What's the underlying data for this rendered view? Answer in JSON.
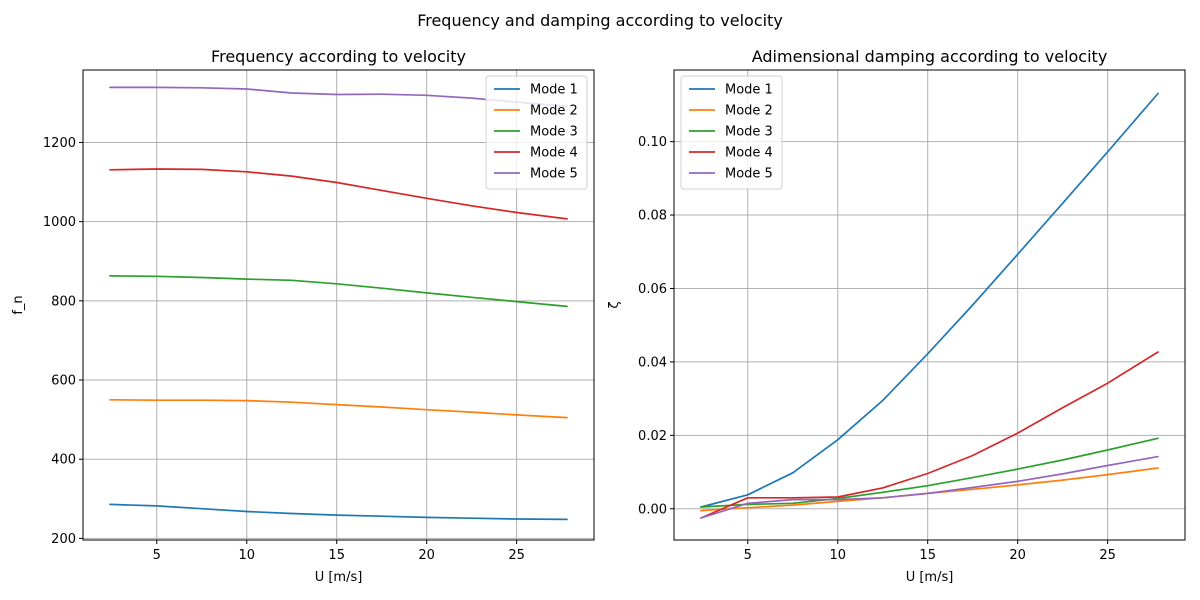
{
  "figure": {
    "suptitle": "Frequency and damping according to velocity"
  },
  "chart_data": [
    {
      "type": "line",
      "title": "Frequency according to velocity",
      "xlabel": "U [m/s]",
      "ylabel": "f_n",
      "xlim": [
        0.9,
        29.3
      ],
      "ylim": [
        196,
        1383
      ],
      "xticks": [
        5,
        10,
        15,
        20,
        25
      ],
      "yticks": [
        200,
        400,
        600,
        800,
        1000,
        1200
      ],
      "ytick_labels": [
        "200",
        "400",
        "600",
        "800",
        "1000",
        "1200"
      ],
      "grid": true,
      "legend_position": "upper right",
      "x": [
        2.4,
        5.0,
        7.5,
        10.0,
        12.5,
        15.0,
        17.5,
        20.0,
        22.5,
        25.0,
        27.8
      ],
      "series": [
        {
          "name": "Mode 1",
          "color": "#1f77b4",
          "values": [
            286,
            282,
            275,
            268,
            263,
            259,
            256,
            253,
            251,
            249,
            248
          ]
        },
        {
          "name": "Mode 2",
          "color": "#ff7f0e",
          "values": [
            550,
            549,
            549,
            548,
            544,
            538,
            532,
            525,
            519,
            512,
            505
          ]
        },
        {
          "name": "Mode 3",
          "color": "#2ca02c",
          "values": [
            863,
            862,
            859,
            855,
            852,
            843,
            832,
            820,
            809,
            798,
            786
          ]
        },
        {
          "name": "Mode 4",
          "color": "#d62728",
          "values": [
            1131,
            1133,
            1132,
            1126,
            1115,
            1099,
            1079,
            1059,
            1040,
            1023,
            1007
          ]
        },
        {
          "name": "Mode 5",
          "color": "#9467bd",
          "values": [
            1339,
            1339,
            1338,
            1335,
            1325,
            1321,
            1322,
            1319,
            1312,
            1302,
            1291
          ]
        }
      ]
    },
    {
      "type": "line",
      "title": "Adimensional damping according to velocity",
      "xlabel": "U [m/s]",
      "ylabel": "ζ",
      "xlim": [
        0.9,
        29.3
      ],
      "ylim": [
        -0.0085,
        0.1195
      ],
      "xticks": [
        5,
        10,
        15,
        20,
        25
      ],
      "yticks": [
        0.0,
        0.02,
        0.04,
        0.06,
        0.08,
        0.1
      ],
      "ytick_labels": [
        "0.00",
        "0.02",
        "0.04",
        "0.06",
        "0.08",
        "0.10"
      ],
      "grid": true,
      "legend_position": "upper left",
      "x": [
        2.4,
        5.0,
        7.5,
        10.0,
        12.5,
        15.0,
        17.5,
        20.0,
        22.5,
        25.0,
        27.8
      ],
      "series": [
        {
          "name": "Mode 1",
          "color": "#1f77b4",
          "values": [
            0.0005,
            0.0038,
            0.0098,
            0.0188,
            0.0295,
            0.0422,
            0.0555,
            0.0693,
            0.0832,
            0.0972,
            0.1131
          ]
        },
        {
          "name": "Mode 2",
          "color": "#ff7f0e",
          "values": [
            -0.0005,
            0.0003,
            0.001,
            0.002,
            0.003,
            0.0042,
            0.0053,
            0.0065,
            0.0078,
            0.0093,
            0.0111
          ]
        },
        {
          "name": "Mode 3",
          "color": "#2ca02c",
          "values": [
            0.0005,
            0.0012,
            0.0015,
            0.0028,
            0.0045,
            0.0063,
            0.0085,
            0.0108,
            0.0133,
            0.016,
            0.0192
          ]
        },
        {
          "name": "Mode 4",
          "color": "#d62728",
          "values": [
            -0.0025,
            0.003,
            0.003,
            0.0032,
            0.0057,
            0.0096,
            0.0145,
            0.0206,
            0.0275,
            0.0342,
            0.0427
          ]
        },
        {
          "name": "Mode 5",
          "color": "#9467bd",
          "values": [
            -0.0025,
            0.0015,
            0.0025,
            0.0025,
            0.003,
            0.0042,
            0.0058,
            0.0075,
            0.0095,
            0.0118,
            0.0142
          ]
        }
      ]
    }
  ]
}
